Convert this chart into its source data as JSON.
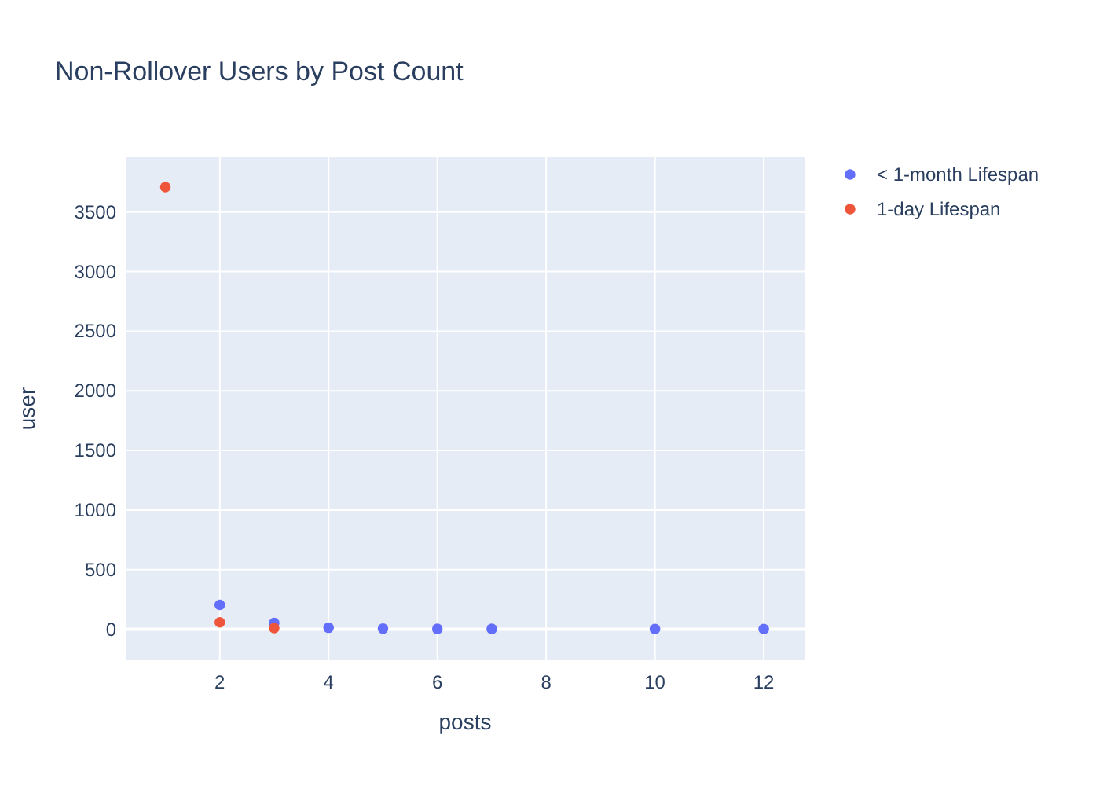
{
  "chart_data": {
    "type": "scatter",
    "title": "Non-Rollover Users by Post Count",
    "xlabel": "posts",
    "ylabel": "user",
    "xlim": [
      0.27,
      12.75
    ],
    "xticks": [
      2,
      4,
      6,
      8,
      10,
      12
    ],
    "ylim": [
      -260,
      3960
    ],
    "yticks": [
      0,
      500,
      1000,
      1500,
      2000,
      2500,
      3000,
      3500
    ],
    "grid": true,
    "legend": "top right",
    "marker": "circle",
    "series": [
      {
        "name": "< 1-month Lifespan",
        "color": "#636efa",
        "x": [
          2,
          3,
          4,
          5,
          6,
          7,
          10,
          12
        ],
        "values": [
          205,
          53,
          13,
          5,
          3,
          3,
          2,
          2
        ]
      },
      {
        "name": "1-day Lifespan",
        "color": "#ef553b",
        "x": [
          1,
          2,
          3
        ],
        "values": [
          3710,
          58,
          10
        ]
      }
    ]
  }
}
